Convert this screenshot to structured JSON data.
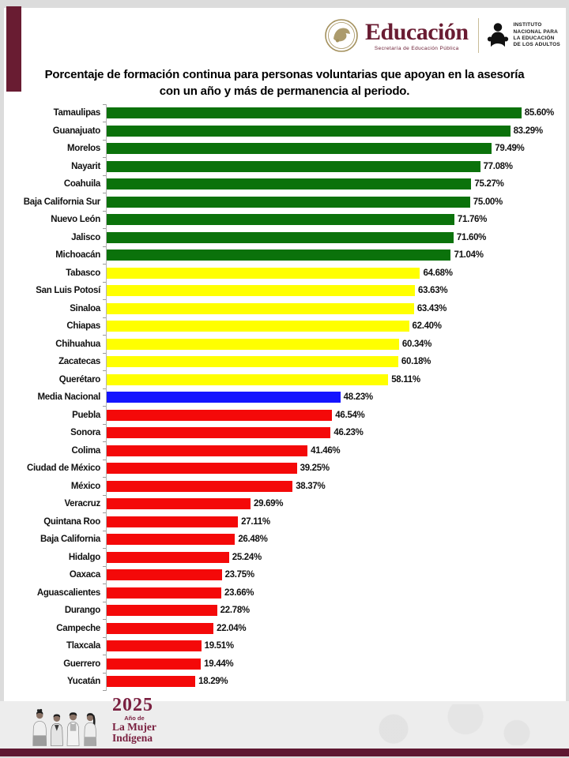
{
  "header": {
    "sep_logo": {
      "title": "Educación",
      "subtitle": "Secretaría de Educación Pública"
    },
    "inea_logo": {
      "lines": [
        "INSTITUTO",
        "NACIONAL PARA",
        "LA EDUCACIÓN",
        "DE LOS ADULTOS"
      ]
    }
  },
  "title": "Porcentaje de formación continua para personas voluntarias que apoyan en la asesoría con un año y más de permanencia al periodo.",
  "chart_data": {
    "type": "bar",
    "orientation": "horizontal",
    "title": "Porcentaje de formación continua para personas voluntarias que apoyan en la asesoría con un año y más de permanencia al periodo.",
    "xlabel": "",
    "ylabel": "",
    "xlim": [
      0,
      88
    ],
    "grid": false,
    "legend": "none",
    "value_suffix": "%",
    "sorted": "descending",
    "categories": [
      "Tamaulipas",
      "Guanajuato",
      "Morelos",
      "Nayarit",
      "Coahuila",
      "Baja California Sur",
      "Nuevo León",
      "Jalisco",
      "Michoacán",
      "Tabasco",
      "San Luis Potosí",
      "Sinaloa",
      "Chiapas",
      "Chihuahua",
      "Zacatecas",
      "Querétaro",
      "Media Nacional",
      "Puebla",
      "Sonora",
      "Colima",
      "Ciudad de México",
      "México",
      "Veracruz",
      "Quintana Roo",
      "Baja California",
      "Hidalgo",
      "Oaxaca",
      "Aguascalientes",
      "Durango",
      "Campeche",
      "Tlaxcala",
      "Guerrero",
      "Yucatán"
    ],
    "values": [
      85.6,
      83.29,
      79.49,
      77.08,
      75.27,
      75.0,
      71.76,
      71.6,
      71.04,
      64.68,
      63.63,
      63.43,
      62.4,
      60.34,
      60.18,
      58.11,
      48.23,
      46.54,
      46.23,
      41.46,
      39.25,
      38.37,
      29.69,
      27.11,
      26.48,
      25.24,
      23.75,
      23.66,
      22.78,
      22.04,
      19.51,
      19.44,
      18.29
    ],
    "bar_colors": [
      "green",
      "green",
      "green",
      "green",
      "green",
      "green",
      "green",
      "green",
      "green",
      "yellow",
      "yellow",
      "yellow",
      "yellow",
      "yellow",
      "yellow",
      "yellow",
      "blue",
      "red",
      "red",
      "red",
      "red",
      "red",
      "red",
      "red",
      "red",
      "red",
      "red",
      "red",
      "red",
      "red",
      "red",
      "red",
      "red"
    ],
    "color_map": {
      "green": "#0b720b",
      "yellow": "#ffff00",
      "blue": "#1414ff",
      "red": "#f40909"
    }
  },
  "footer": {
    "year": "2025",
    "sub": "Año de",
    "line1": "La Mujer",
    "line2": "Indígena"
  },
  "colors": {
    "accent": "#691c32",
    "bottom_bar": "#5e1731"
  }
}
